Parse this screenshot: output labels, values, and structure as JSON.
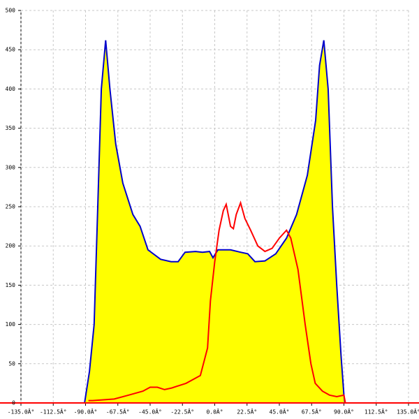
{
  "chart_data": {
    "type": "line",
    "xlim": [
      -135,
      135
    ],
    "ylim": [
      0,
      500
    ],
    "xticks": [
      {
        "value": -135,
        "label": "-135.0Â°"
      },
      {
        "value": -112.5,
        "label": "-112.5Â°"
      },
      {
        "value": -90,
        "label": "-90.0Â°"
      },
      {
        "value": -67.5,
        "label": "-67.5Â°"
      },
      {
        "value": -45,
        "label": "-45.0Â°"
      },
      {
        "value": -22.5,
        "label": "-22.5Â°"
      },
      {
        "value": 0,
        "label": "0.0Â°"
      },
      {
        "value": 22.5,
        "label": "22.5Â°"
      },
      {
        "value": 45,
        "label": "45.0Â°"
      },
      {
        "value": 67.5,
        "label": "67.5Â°"
      },
      {
        "value": 90,
        "label": "90.0Â°"
      },
      {
        "value": 112.5,
        "label": "112.5Â°"
      },
      {
        "value": 135,
        "label": "135.0Â°"
      }
    ],
    "yticks": [
      0,
      50,
      100,
      150,
      200,
      250,
      300,
      350,
      400,
      450,
      500
    ],
    "grid": true,
    "series": [
      {
        "color": "#0000cc",
        "fill": "#ffff00",
        "x": [
          -90.7,
          -87.3,
          -84,
          -81.5,
          -79,
          -76,
          -73,
          -69,
          -64,
          -57,
          -52,
          -46.5,
          -37.7,
          -30.4,
          -25.5,
          -20.7,
          -13.4,
          -8.5,
          -3.6,
          -1.2,
          2.2,
          11,
          18,
          23,
          28,
          35,
          42.5,
          50,
          57,
          64.5,
          70.3,
          73,
          76,
          79,
          82,
          85,
          88,
          90,
          90.7
        ],
        "values": [
          0,
          40,
          100,
          250,
          400,
          462,
          400,
          330,
          280,
          240,
          225,
          195,
          183,
          180,
          180,
          192,
          193,
          192,
          193,
          185,
          195,
          195,
          192,
          190,
          180,
          181,
          190,
          210,
          240,
          290,
          360,
          430,
          462,
          400,
          250,
          150,
          60,
          10,
          0
        ]
      },
      {
        "color": "#ff0000",
        "x": [
          -88,
          -85,
          -70,
          -60,
          -50,
          -45,
          -40,
          -35,
          -30,
          -20,
          -10,
          -5,
          -3,
          0,
          3,
          6,
          8,
          11,
          13,
          15,
          18,
          21,
          25,
          30,
          35,
          40,
          45,
          50,
          53,
          58,
          63,
          67,
          70,
          75,
          80,
          85,
          90,
          91
        ],
        "values": [
          3,
          3,
          5,
          10,
          15,
          20,
          20,
          17,
          19,
          25,
          35,
          70,
          130,
          180,
          220,
          245,
          253,
          225,
          222,
          240,
          255,
          235,
          220,
          200,
          193,
          197,
          210,
          220,
          210,
          170,
          100,
          50,
          25,
          15,
          10,
          8,
          10,
          0
        ]
      }
    ]
  }
}
